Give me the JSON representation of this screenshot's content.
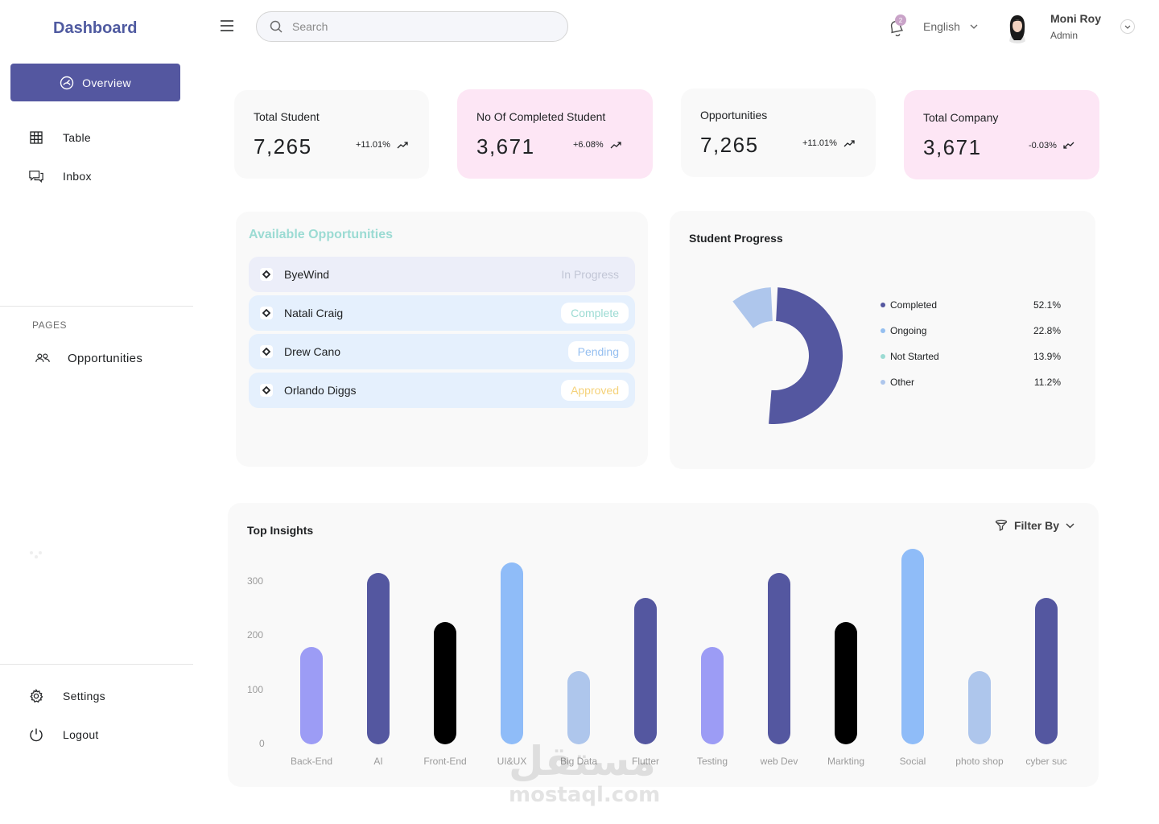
{
  "sidebar": {
    "brand": "Dashboard",
    "active": {
      "label": "Overview",
      "icon": "gauge-icon"
    },
    "items": [
      {
        "label": "Table",
        "icon": "table-icon"
      },
      {
        "label": "Inbox",
        "icon": "chat-icon"
      }
    ],
    "pages_label": "PAGES",
    "pages": [
      {
        "label": "Opportunities",
        "icon": "users-icon"
      }
    ],
    "bottom": [
      {
        "label": "Settings",
        "icon": "gear-icon"
      },
      {
        "label": "Logout",
        "icon": "power-icon"
      }
    ]
  },
  "header": {
    "search_placeholder": "Search",
    "notifications_count": "2",
    "language": "English",
    "user": {
      "name": "Moni Roy",
      "role": "Admin"
    }
  },
  "stats": [
    {
      "label": "Total Student",
      "value": "7,265",
      "trend": "+11.01%",
      "direction": "up",
      "bg": "#f9f9f9"
    },
    {
      "label": "No Of Completed Student",
      "value": "3,671",
      "trend": "+6.08%",
      "direction": "up",
      "bg": "#fde6f5"
    },
    {
      "label": "Opportunities",
      "value": "7,265",
      "trend": "+11.01%",
      "direction": "up",
      "bg": "#f9f9f9"
    },
    {
      "label": "Total Company",
      "value": "3,671",
      "trend": "-0.03%",
      "direction": "down",
      "bg": "#fde6f5"
    }
  ],
  "opportunities": {
    "title": "Available Opportunities",
    "rows": [
      {
        "name": "ByeWind",
        "status": "In Progress",
        "status_color": "#c2c6d6",
        "row_bg": "#eceef9",
        "pill_bg": "transparent"
      },
      {
        "name": "Natali Craig",
        "status": "Complete",
        "status_color": "#9bdbd3",
        "row_bg": "#e5f0fd",
        "pill_bg": "#ffffff"
      },
      {
        "name": "Drew Cano",
        "status": "Pending",
        "status_color": "#95bff0",
        "row_bg": "#e5f0fd",
        "pill_bg": "#ffffff"
      },
      {
        "name": "Orlando Diggs",
        "status": "Approved",
        "status_color": "#f5d27a",
        "row_bg": "#e5f0fd",
        "pill_bg": "#ffffff"
      }
    ]
  },
  "progress": {
    "title": "Student Progress",
    "chart_data": {
      "type": "pie",
      "categories": [
        "Completed",
        "Ongoing",
        "Not Started",
        "Other"
      ],
      "values": [
        52.1,
        22.8,
        13.9,
        11.2
      ],
      "labels": [
        "52.1%",
        "22.8%",
        "13.9%",
        "11.2%"
      ],
      "colors": [
        "#5457a0",
        "#95bff0",
        "#9bdbd3",
        "#aec6ec"
      ],
      "legend": "right"
    }
  },
  "insights": {
    "title": "Top Insights",
    "filter_label": "Filter By",
    "chart_data": {
      "type": "bar",
      "title": "Top Insights",
      "categories": [
        "Back-End",
        "AI",
        "Front-End",
        "UI&UX",
        "Big Data",
        "Flutter",
        "Testing",
        "web Dev",
        "Markting",
        "Social",
        "photo shop",
        "cyber suc"
      ],
      "values": [
        180,
        315,
        225,
        335,
        135,
        270,
        180,
        315,
        225,
        360,
        135,
        270
      ],
      "colors": [
        "#9c9cf5",
        "#5457a0",
        "#000000",
        "#8fbcf8",
        "#aec6ec",
        "#5457a0",
        "#9c9cf5",
        "#5457a0",
        "#000000",
        "#8fbcf8",
        "#aec6ec",
        "#5457a0"
      ],
      "yticks": [
        "0",
        "100",
        "200",
        "300"
      ],
      "ylim": [
        0,
        350
      ]
    }
  },
  "watermark": {
    "arabic": "مستقل",
    "latin": "mostaql.com"
  }
}
